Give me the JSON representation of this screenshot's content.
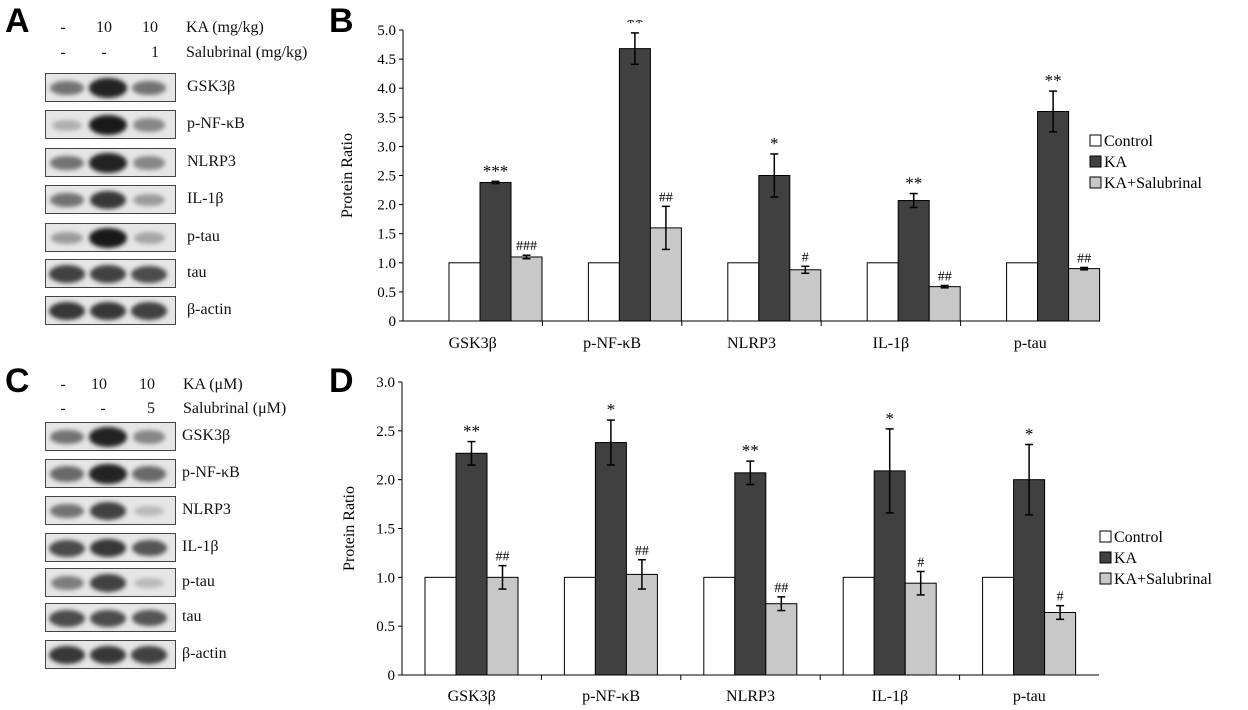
{
  "panels": {
    "a": "A",
    "b": "B",
    "c": "C",
    "d": "D"
  },
  "blot_a": {
    "conditions": [
      {
        "values": [
          "-",
          "10",
          "10"
        ],
        "label": "KA (mg/kg)"
      },
      {
        "values": [
          "-",
          "-",
          "1"
        ],
        "label": "Salubrinal (mg/kg)"
      }
    ],
    "rows": [
      {
        "label": "GSK3β",
        "intensity": [
          0.55,
          0.95,
          0.55
        ]
      },
      {
        "label": "p-NF-κB",
        "intensity": [
          0.25,
          1.0,
          0.45
        ]
      },
      {
        "label": "NLRP3",
        "intensity": [
          0.55,
          0.95,
          0.45
        ]
      },
      {
        "label": "IL-1β",
        "intensity": [
          0.55,
          0.85,
          0.35
        ]
      },
      {
        "label": "p-tau",
        "intensity": [
          0.35,
          1.0,
          0.3
        ]
      },
      {
        "label": "tau",
        "intensity": [
          0.8,
          0.8,
          0.75
        ]
      },
      {
        "label": "β-actin",
        "intensity": [
          0.85,
          0.85,
          0.8
        ]
      }
    ]
  },
  "blot_c": {
    "conditions": [
      {
        "values": [
          "-",
          "10",
          "10"
        ],
        "label": "KA (μM)"
      },
      {
        "values": [
          "-",
          "-",
          "5"
        ],
        "label": "Salubrinal (μM)"
      }
    ],
    "rows": [
      {
        "label": "GSK3β",
        "intensity": [
          0.55,
          0.95,
          0.45
        ]
      },
      {
        "label": "p-NF-κB",
        "intensity": [
          0.6,
          0.95,
          0.6
        ]
      },
      {
        "label": "NLRP3",
        "intensity": [
          0.55,
          0.8,
          0.2
        ]
      },
      {
        "label": "IL-1β",
        "intensity": [
          0.75,
          0.85,
          0.7
        ]
      },
      {
        "label": "p-tau",
        "intensity": [
          0.5,
          0.8,
          0.2
        ]
      },
      {
        "label": "tau",
        "intensity": [
          0.75,
          0.75,
          0.7
        ]
      },
      {
        "label": "β-actin",
        "intensity": [
          0.85,
          0.85,
          0.8
        ]
      }
    ]
  },
  "colors": {
    "control": "#ffffff",
    "ka": "#404040",
    "salubrinal": "#c8c8c8",
    "axis": "#000000"
  },
  "chart_data": [
    {
      "type": "bar",
      "panel": "B",
      "ylabel": "Protein Ratio",
      "ylim": [
        0,
        5
      ],
      "yticks": [
        "0",
        "0.5",
        "1.0",
        "1.5",
        "2.0",
        "2.5",
        "3.0",
        "3.5",
        "4.0",
        "4.5",
        "5.0"
      ],
      "ytick_values": [
        0,
        0.5,
        1,
        1.5,
        2,
        2.5,
        3,
        3.5,
        4,
        4.5,
        5
      ],
      "categories": [
        "GSK3β",
        "p-NF-κB",
        "NLRP3",
        "IL-1β",
        "p-tau"
      ],
      "series": [
        {
          "name": "Control",
          "values": [
            1,
            1,
            1,
            1,
            1
          ],
          "errors": [
            0,
            0,
            0,
            0,
            0
          ],
          "marks": [
            "",
            "",
            "",
            "",
            ""
          ]
        },
        {
          "name": "KA",
          "values": [
            2.38,
            4.68,
            2.5,
            2.07,
            3.6
          ],
          "errors": [
            0.02,
            0.27,
            0.37,
            0.12,
            0.35
          ],
          "marks": [
            "***",
            "**",
            "*",
            "**",
            "**"
          ]
        },
        {
          "name": "KA+Salubrinal",
          "values": [
            1.1,
            1.6,
            0.88,
            0.59,
            0.9
          ],
          "errors": [
            0.03,
            0.37,
            0.06,
            0.02,
            0.02
          ],
          "marks": [
            "###",
            "##",
            "#",
            "##",
            "##"
          ]
        }
      ],
      "legend": "right"
    },
    {
      "type": "bar",
      "panel": "D",
      "ylabel": "Protein Ratio",
      "ylim": [
        0,
        3
      ],
      "yticks": [
        "0",
        "0.5",
        "1.0",
        "1.5",
        "2.0",
        "2.5",
        "3.0"
      ],
      "ytick_values": [
        0,
        0.5,
        1,
        1.5,
        2,
        2.5,
        3
      ],
      "categories": [
        "GSK3β",
        "p-NF-κB",
        "NLRP3",
        "IL-1β",
        "p-tau"
      ],
      "series": [
        {
          "name": "Control",
          "values": [
            1,
            1,
            1,
            1,
            1
          ],
          "errors": [
            0,
            0,
            0,
            0,
            0
          ],
          "marks": [
            "",
            "",
            "",
            "",
            ""
          ]
        },
        {
          "name": "KA",
          "values": [
            2.27,
            2.38,
            2.07,
            2.09,
            2.0
          ],
          "errors": [
            0.12,
            0.23,
            0.12,
            0.43,
            0.36
          ],
          "marks": [
            "**",
            "*",
            "**",
            "*",
            "*"
          ]
        },
        {
          "name": "KA+Salubrinal",
          "values": [
            1.0,
            1.03,
            0.73,
            0.94,
            0.64
          ],
          "errors": [
            0.12,
            0.15,
            0.07,
            0.12,
            0.07
          ],
          "marks": [
            "##",
            "##",
            "##",
            "#",
            "#"
          ]
        }
      ],
      "legend": "right"
    }
  ]
}
